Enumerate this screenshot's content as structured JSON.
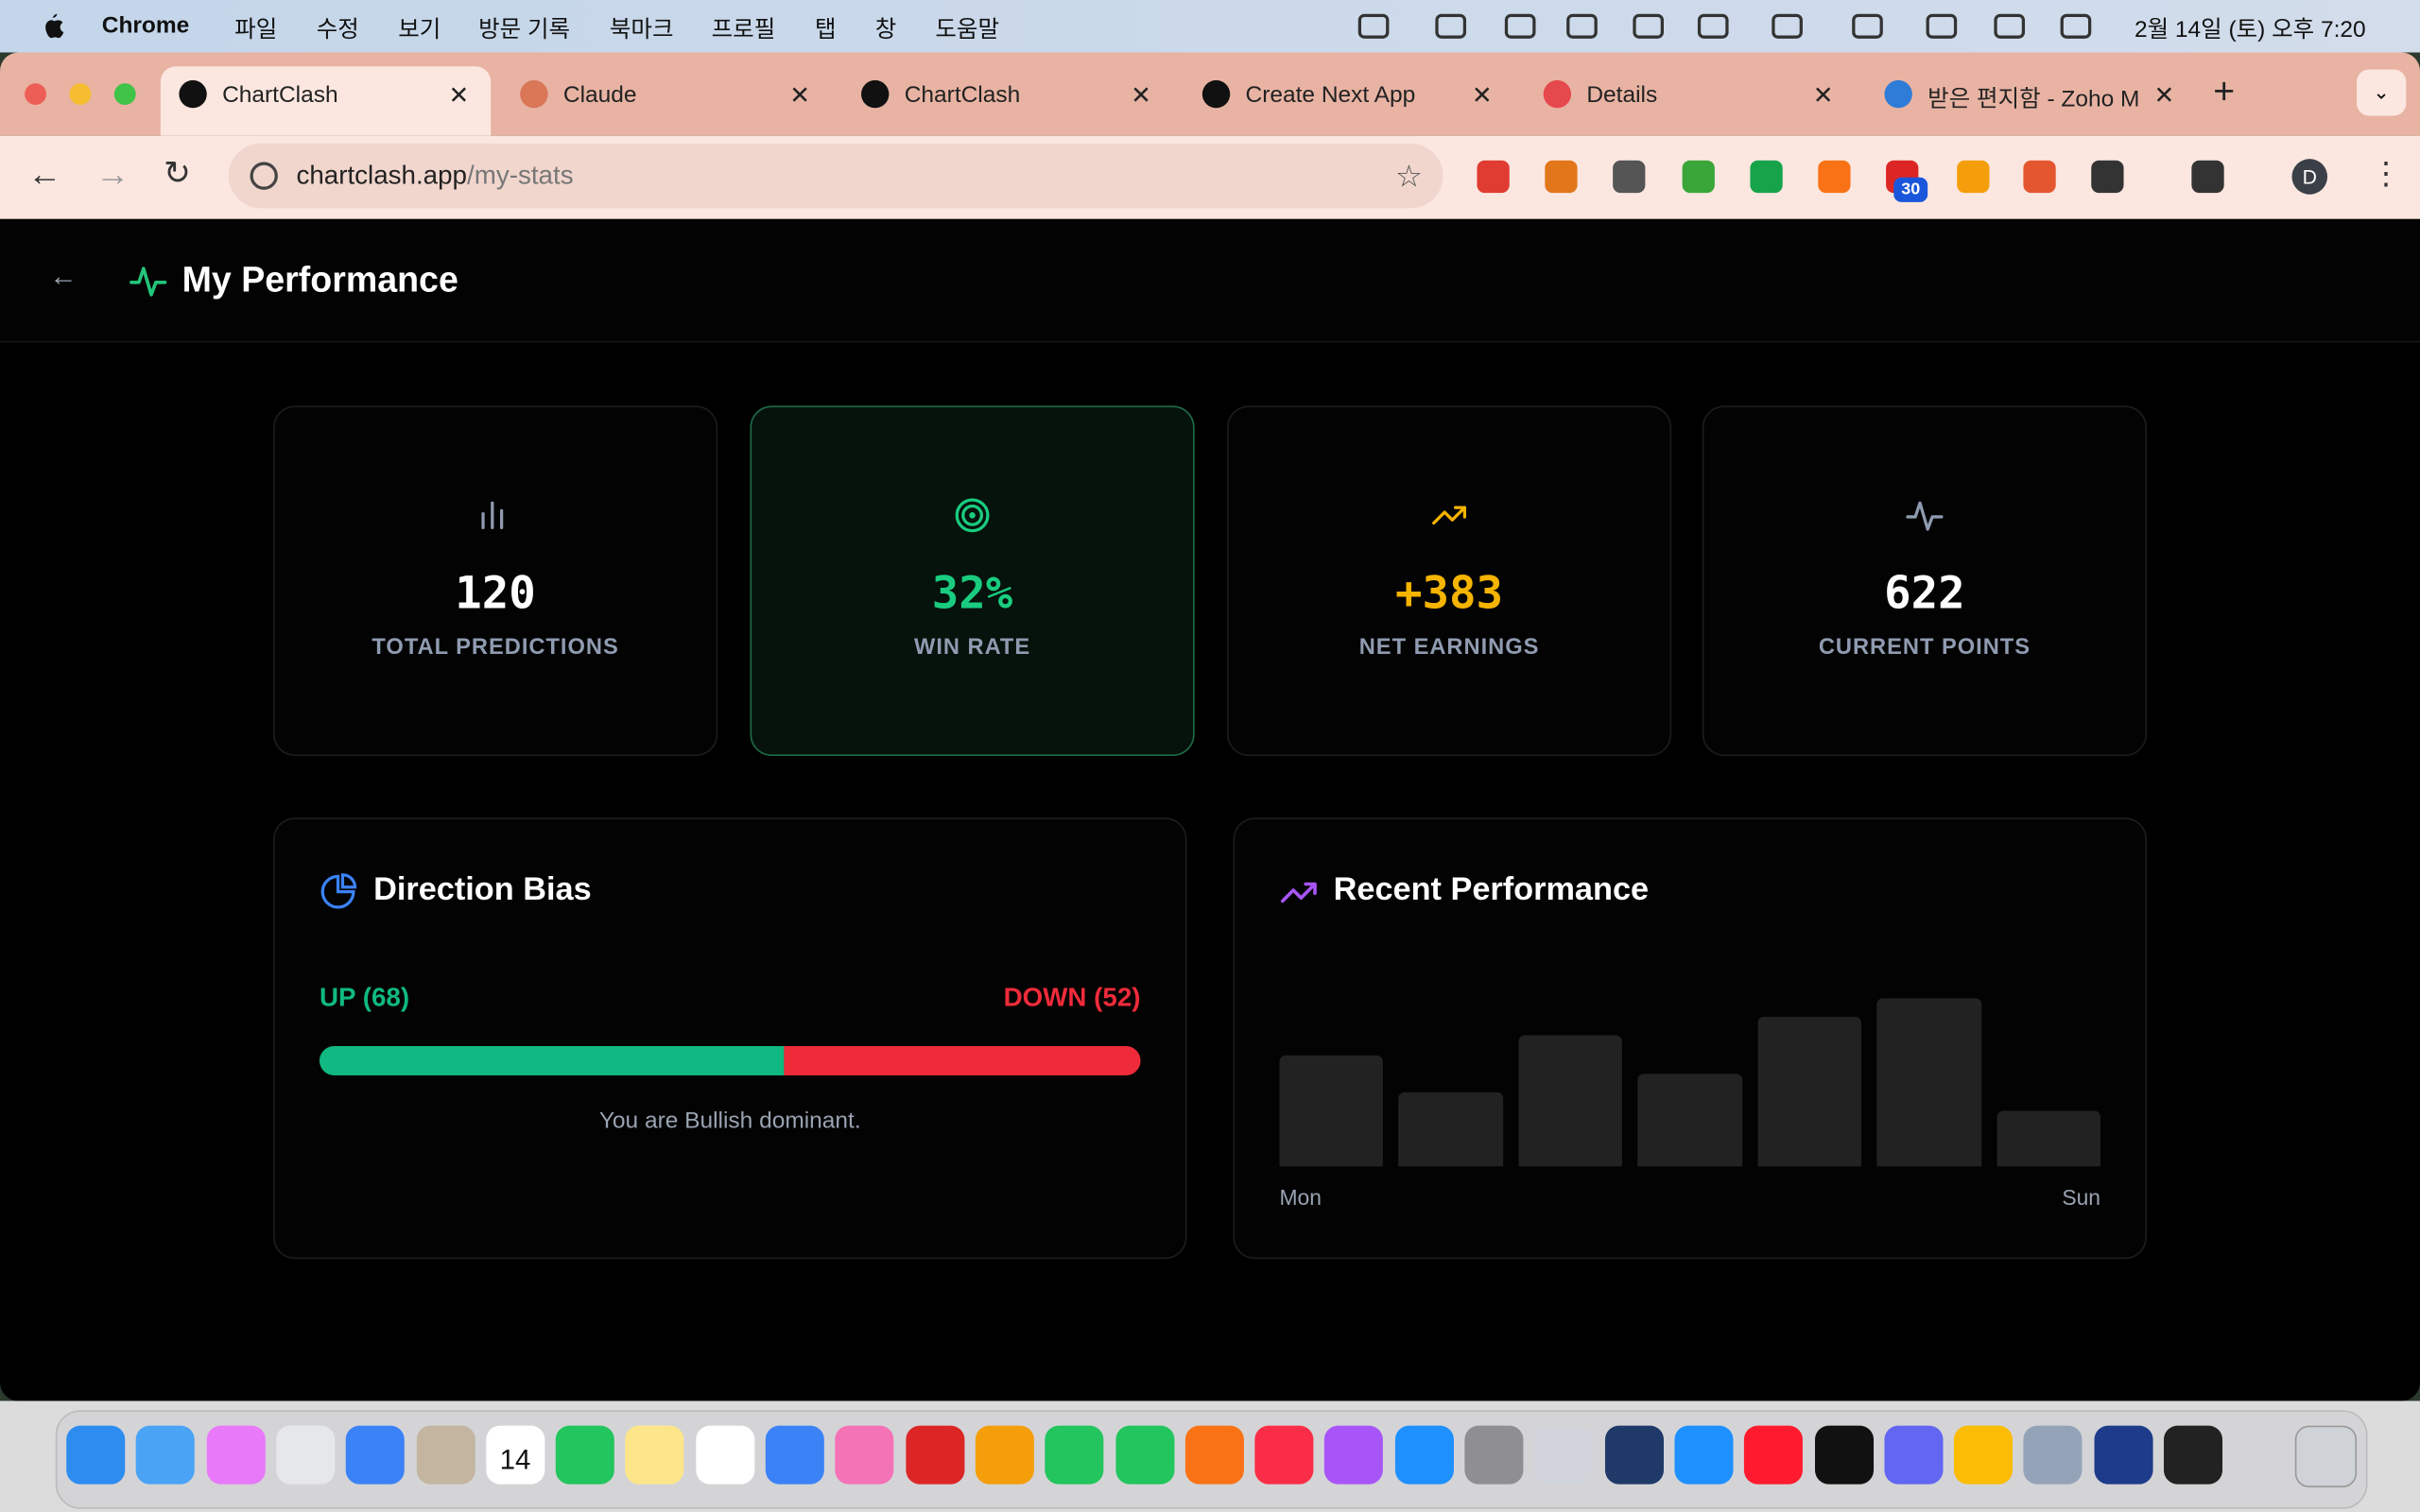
{
  "menu_bar": {
    "app": "Chrome",
    "items": [
      "파일",
      "수정",
      "보기",
      "방문 기록",
      "북마크",
      "프로필",
      "탭",
      "창",
      "도움말"
    ],
    "clock": "2월 14일 (토) 오후 7:20"
  },
  "tabs": [
    "ChartClash",
    "Claude",
    "ChartClash",
    "Create Next App",
    "Details",
    "받은 편지함 - Zoho M"
  ],
  "address_bar": {
    "host": "chartclash.app",
    "path": "/my-stats"
  },
  "extension_badge": "30",
  "profile_initial": "D",
  "header": {
    "title": "My Performance"
  },
  "stats": [
    {
      "value": "120",
      "label": "TOTAL PREDICTIONS"
    },
    {
      "value": "32%",
      "label": "WIN RATE"
    },
    {
      "value": "+383",
      "label": "NET EARNINGS"
    },
    {
      "value": "622",
      "label": "CURRENT POINTS"
    }
  ],
  "direction_bias": {
    "title": "Direction Bias",
    "up_label": "UP (68)",
    "up": 68,
    "down_label": "DOWN (52)",
    "down": 52,
    "summary": "You are Bullish dominant."
  },
  "recent_performance": {
    "title": "Recent Performance",
    "chart_data": {
      "type": "bar",
      "categories": [
        "Mon",
        null,
        null,
        null,
        null,
        null,
        "Sun"
      ],
      "values": [
        72,
        48,
        85,
        60,
        97,
        109,
        36
      ],
      "color": "#222222"
    }
  },
  "dock": {
    "calendar_day": "14"
  }
}
